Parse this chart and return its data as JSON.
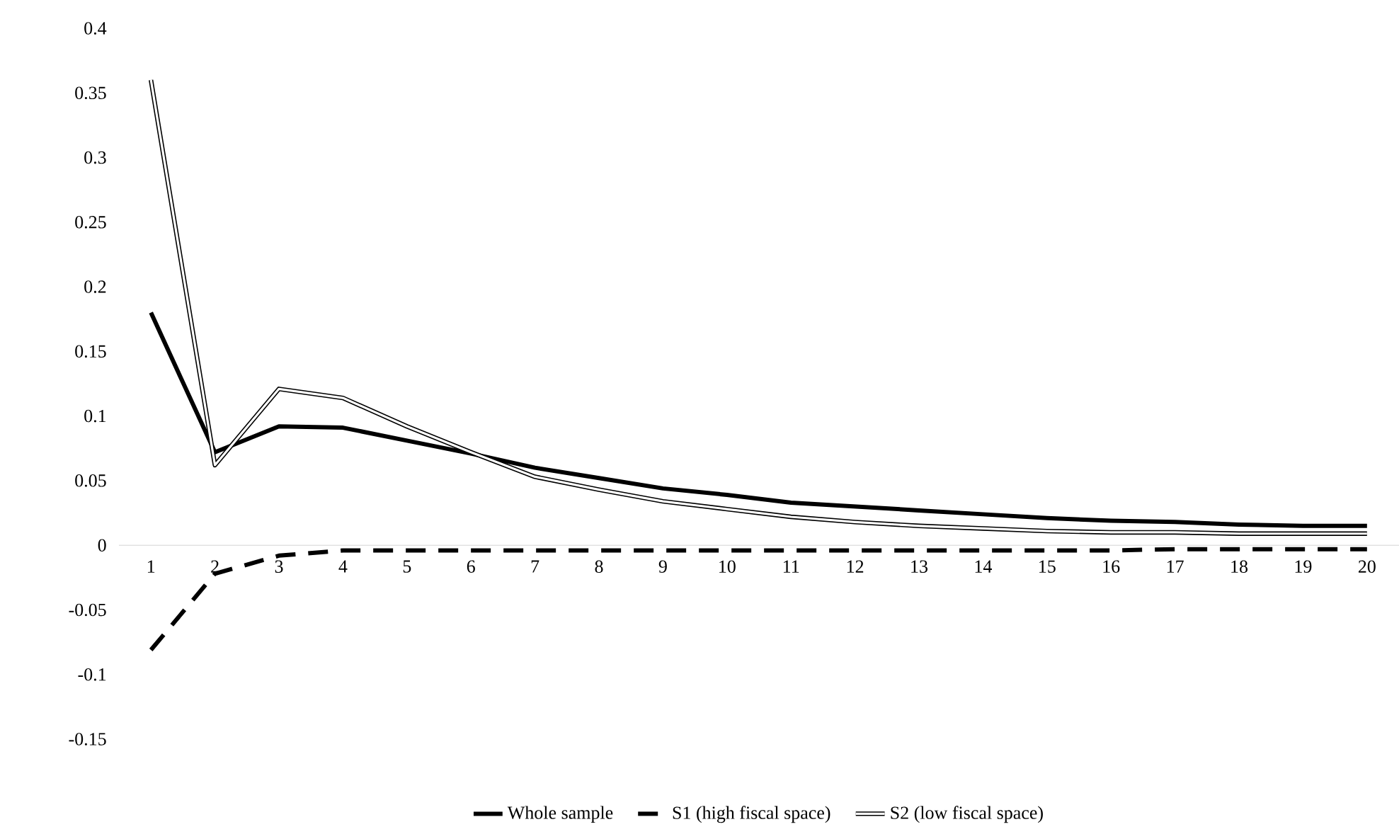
{
  "chart_data": {
    "type": "line",
    "categories": [
      "1",
      "2",
      "3",
      "4",
      "5",
      "6",
      "7",
      "8",
      "9",
      "10",
      "11",
      "12",
      "13",
      "14",
      "15",
      "16",
      "17",
      "18",
      "19",
      "20"
    ],
    "series": [
      {
        "name": "Whole sample",
        "color": "#000000",
        "line_style": "solid",
        "values": [
          0.18,
          0.072,
          0.092,
          0.091,
          0.081,
          0.071,
          0.06,
          0.052,
          0.044,
          0.039,
          0.033,
          0.03,
          0.027,
          0.024,
          0.021,
          0.019,
          0.018,
          0.016,
          0.015,
          0.015
        ]
      },
      {
        "name": "S1 (high fiscal space)",
        "color": "#000000",
        "line_style": "dashed",
        "values": [
          -0.081,
          -0.022,
          -0.008,
          -0.004,
          -0.004,
          -0.004,
          -0.004,
          -0.004,
          -0.004,
          -0.004,
          -0.004,
          -0.004,
          -0.004,
          -0.004,
          -0.004,
          -0.004,
          -0.003,
          -0.003,
          -0.003,
          -0.003
        ]
      },
      {
        "name": "S2 (low fiscal space)",
        "color": "#000000",
        "line_style": "solid",
        "values": [
          0.36,
          0.062,
          0.121,
          0.114,
          0.092,
          0.072,
          0.053,
          0.043,
          0.034,
          0.028,
          0.022,
          0.018,
          0.015,
          0.013,
          0.011,
          0.01,
          0.01,
          0.009,
          0.009,
          0.009
        ]
      }
    ],
    "ylim": [
      -0.15,
      0.4
    ],
    "yticks": [
      -0.15,
      -0.1,
      -0.05,
      0,
      0.05,
      0.1,
      0.15,
      0.2,
      0.25,
      0.3,
      0.35,
      0.4
    ],
    "grid": false,
    "legend": "bottom",
    "marker": "none"
  }
}
